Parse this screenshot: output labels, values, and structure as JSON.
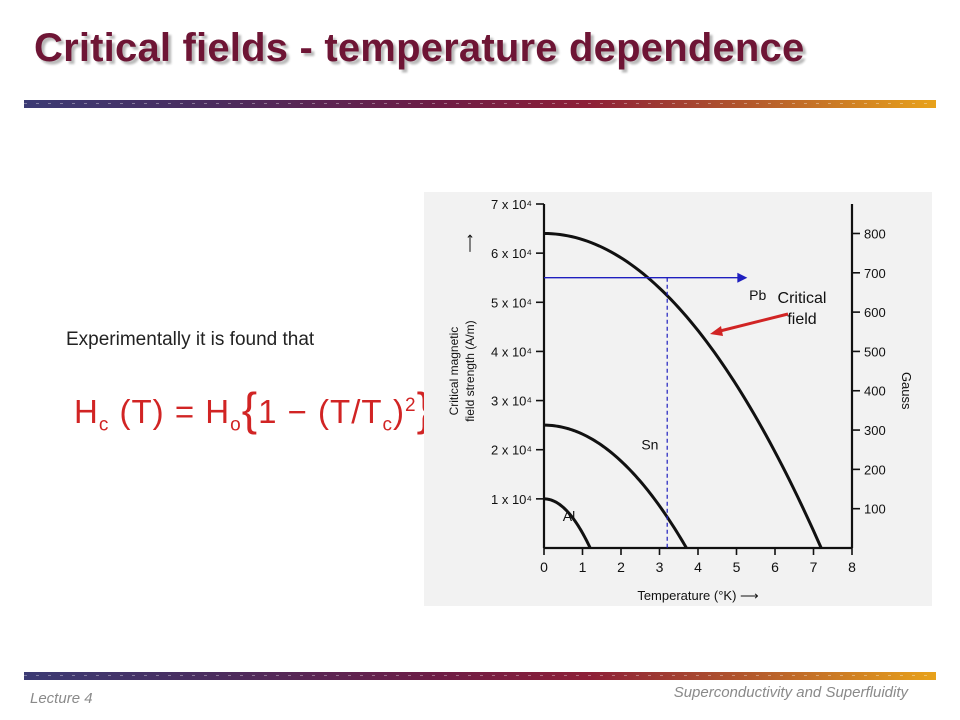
{
  "slide": {
    "title": "Critical fields - temperature dependence",
    "intro_text": "Experimentally it is found that",
    "formula": {
      "lhs_H": "H",
      "lhs_sub": "c",
      "lhs_arg": "(T)",
      "equals": "=",
      "rhs_H": "H",
      "rhs_sub": "o",
      "brace_open": "{",
      "one_minus": "1 − ",
      "paren_T": "(T/T",
      "paren_sub": "c",
      "paren_close": ")",
      "power": "2",
      "brace_close": "}"
    },
    "annotation": "Critical field",
    "footer_left": "Lecture 4",
    "footer_right": "Superconductivity and Superfluidity"
  },
  "colors": {
    "title": "#6e1535",
    "formula": "#d12424",
    "arrow_red": "#d12424",
    "guide_blue": "#1f1fbf",
    "curve": "#111111"
  },
  "chart_data": {
    "type": "line",
    "xlabel": "Temperature (°K)",
    "ylabel": "Critical magnetic field strength (A/m)",
    "y2label": "Gauss",
    "xlim": [
      0,
      8
    ],
    "ylim": [
      0,
      70000
    ],
    "y2lim": [
      0,
      875
    ],
    "x_ticks": [
      "0",
      "1",
      "2",
      "3",
      "4",
      "5",
      "6",
      "7",
      "8"
    ],
    "y_ticks": [
      "1 x 10⁴",
      "2 x 10⁴",
      "3 x 10⁴",
      "4 x 10⁴",
      "5 x 10⁴",
      "6 x 10⁴",
      "7 x 10⁴"
    ],
    "y2_ticks": [
      "100",
      "200",
      "300",
      "400",
      "500",
      "600",
      "700",
      "800"
    ],
    "series": [
      {
        "name": "Pb",
        "Tc": 7.2,
        "H0": 64000
      },
      {
        "name": "Sn",
        "Tc": 3.7,
        "H0": 25000
      },
      {
        "name": "Al",
        "Tc": 1.2,
        "H0": 10000
      }
    ],
    "guide": {
      "T": 3.2,
      "H": 55000
    }
  }
}
